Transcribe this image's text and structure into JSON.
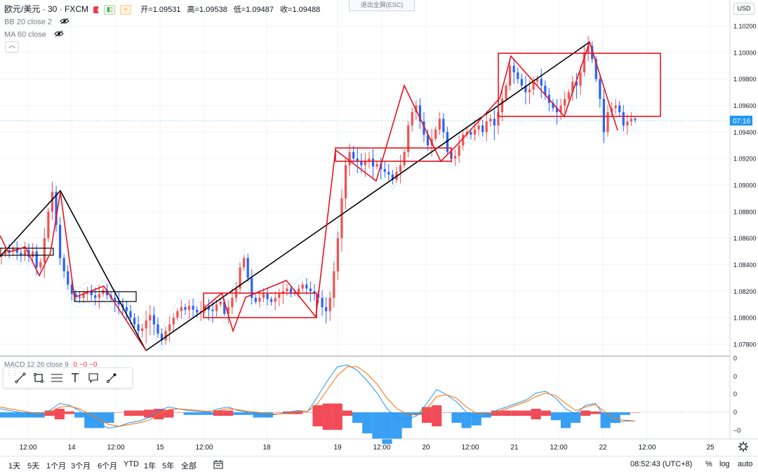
{
  "header": {
    "symbol": "欧元/美元 · 30 · FXCM",
    "ohlc": {
      "open": "开=1.09531",
      "high": "高=1.09538",
      "low": "低=1.09487",
      "close": "收=1.09488"
    },
    "exit_fullscreen": "退出全屏(ESC)",
    "currency": "USD",
    "collapse_icon": "chevron-up-icon"
  },
  "indicators": [
    {
      "label": "BB 20 close 2",
      "icon": "eye-icon"
    },
    {
      "label": "MA 60 close",
      "icon": "eye-icon"
    }
  ],
  "macd": {
    "label": "MACD 12 26 close 9",
    "values": "0  −0  −0",
    "colors": {
      "macd": "#2196f3",
      "signal": "#ff6d00",
      "hist_pos": "#f23645",
      "hist_neg": "#2196f3"
    }
  },
  "price_tag": {
    "value": "07:16",
    "color": "#2196f3"
  },
  "time_axis": [
    "12:00",
    "14",
    "12:00",
    "15",
    "12:00",
    "18",
    "19",
    "12:00",
    "20",
    "12:00",
    "21",
    "12:00",
    "22",
    "12:00",
    "25"
  ],
  "bottom_bar": {
    "ranges": [
      "1天",
      "5天",
      "1个月",
      "3个月",
      "6个月",
      "YTD",
      "1年",
      "5年",
      "全部"
    ],
    "compare_icon": "calendar-range-icon",
    "clock": "08:52:43 (UTC+8)",
    "percent": "%",
    "log": "log",
    "auto": "auto"
  },
  "draw_toolbar": [
    "trend-line-icon",
    "rectangle-icon",
    "parallel-lines-icon",
    "text-icon",
    "callout-icon",
    "brush-icon"
  ],
  "colors": {
    "up": "#ef5350",
    "down": "#2962ff",
    "pattern": "#e4151f",
    "trend": "#000000",
    "grid": "#f0f3fa"
  },
  "chart_data": [
    {
      "type": "candlestick",
      "symbol": "EUR/USD",
      "interval": "30",
      "y_ticks": [
        "1.07800",
        "1.08000",
        "1.08200",
        "1.08400",
        "1.08600",
        "1.08800",
        "1.09000",
        "1.09200",
        "1.09400",
        "1.09600",
        "1.09800",
        "1.10000",
        "1.10200"
      ],
      "ylim": [
        1.0772,
        1.1028
      ],
      "last_price": 1.09488,
      "close_series": [
        1.0848,
        1.0851,
        1.085,
        1.0852,
        1.0849,
        1.0847,
        1.0851,
        1.0846,
        1.085,
        1.0838,
        1.0842,
        1.086,
        1.088,
        1.0895,
        1.087,
        1.0845,
        1.0835,
        1.0825,
        1.0818,
        1.0816,
        1.0815,
        1.0818,
        1.082,
        1.0817,
        1.0815,
        1.0818,
        1.0821,
        1.0817,
        1.0815,
        1.0812,
        1.081,
        1.0808,
        1.0805,
        1.08,
        1.0795,
        1.079,
        1.0792,
        1.0798,
        1.0802,
        1.0795,
        1.0788,
        1.0783,
        1.079,
        1.0795,
        1.08,
        1.0805,
        1.0808,
        1.0806,
        1.0809,
        1.0806,
        1.0804,
        1.0805,
        1.0808,
        1.0806,
        1.0805,
        1.081,
        1.0812,
        1.0803,
        1.0808,
        1.0815,
        1.0822,
        1.0838,
        1.0845,
        1.083,
        1.0815,
        1.0812,
        1.0815,
        1.0818,
        1.0814,
        1.0812,
        1.0815,
        1.0818,
        1.082,
        1.0822,
        1.0819,
        1.0818,
        1.0822,
        1.0825,
        1.0822,
        1.082,
        1.0818,
        1.0815,
        1.0808,
        1.0805,
        1.0815,
        1.0835,
        1.086,
        1.089,
        1.0915,
        1.0925,
        1.092,
        1.0918,
        1.0915,
        1.0918,
        1.092,
        1.0914,
        1.0916,
        1.0912,
        1.091,
        1.0908,
        1.0904,
        1.091,
        1.0915,
        1.0925,
        1.0945,
        1.0955,
        1.096,
        1.0948,
        1.0938,
        1.093,
        1.0935,
        1.0942,
        1.095,
        1.094,
        1.0925,
        1.092,
        1.0922,
        1.093,
        1.0938,
        1.094,
        1.0938,
        1.0942,
        1.0945,
        1.094,
        1.0948,
        1.095,
        1.0945,
        1.0955,
        1.0965,
        1.0975,
        1.099,
        1.0985,
        1.098,
        1.0975,
        1.097,
        1.0972,
        1.0978,
        1.098,
        1.0975,
        1.0968,
        1.0962,
        1.0958,
        1.0955,
        1.096,
        1.0965,
        1.097,
        1.0978,
        1.0975,
        1.0985,
        1.1,
        1.1005,
        1.0995,
        1.098,
        1.0965,
        1.094,
        1.0955,
        1.0958,
        1.096,
        1.0955,
        1.0945,
        1.0948,
        1.095,
        1.0949
      ]
    },
    {
      "type": "line",
      "title": "MACD 12 26 close 9",
      "y_ticks": [
        "0",
        "0",
        "0",
        "0",
        "−0"
      ],
      "series": [
        {
          "name": "MACD",
          "values": [
            0.2,
            0.1,
            0,
            -0.1,
            -0.2,
            0.1,
            0.5,
            0.4,
            0.1,
            -0.4,
            -0.7,
            -0.9,
            -0.8,
            -0.6,
            -0.5,
            -0.3,
            0.1,
            0.3,
            0.2,
            0.1,
            0.05,
            0,
            0.2,
            0.3,
            0.1,
            0,
            -0.1,
            -0.2,
            -0.1,
            0,
            0.1,
            0.05,
            0.9,
            1.8,
            2.6,
            2.7,
            2.4,
            1.8,
            1.1,
            0.2,
            -0.3,
            -0.4,
            -0.2,
            0.5,
            1.3,
            1.0,
            0.6,
            0,
            -0.3,
            -0.2,
            0.1,
            0.3,
            0.5,
            0.7,
            1.1,
            1.2,
            0.8,
            0.2,
            -0.1,
            0.4,
            0.5,
            -0.3,
            -0.6,
            -0.5,
            -0.5
          ]
        },
        {
          "name": "Signal",
          "values": [
            0.3,
            0.2,
            0.1,
            0,
            -0.1,
            0,
            0.3,
            0.35,
            0.2,
            -0.1,
            -0.4,
            -0.7,
            -0.8,
            -0.7,
            -0.6,
            -0.45,
            -0.1,
            0.15,
            0.2,
            0.15,
            0.1,
            0.05,
            0.1,
            0.2,
            0.15,
            0.05,
            0,
            -0.1,
            -0.1,
            -0.05,
            0.05,
            0.05,
            0.5,
            1.3,
            2.1,
            2.6,
            2.6,
            2.2,
            1.6,
            0.8,
            0.2,
            -0.1,
            -0.15,
            0.2,
            0.9,
            1.0,
            0.8,
            0.3,
            -0.05,
            -0.1,
            0,
            0.2,
            0.4,
            0.6,
            0.9,
            1.1,
            0.95,
            0.5,
            0.1,
            0.3,
            0.45,
            0,
            -0.4,
            -0.45,
            -0.5
          ]
        }
      ]
    }
  ]
}
